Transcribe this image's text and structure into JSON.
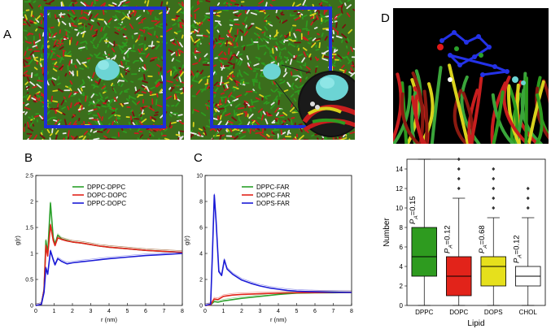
{
  "panel_labels": {
    "a": "A",
    "b": "B",
    "c": "C",
    "d": "D"
  },
  "colors": {
    "dppc": "#2e9b1f",
    "dopc": "#c81e1e",
    "dops": "#d9d21c",
    "chol": "#ffffff",
    "box_outline": "#1d2fd6",
    "protein": "#6cd4d4",
    "line_green": "#2aa02a",
    "line_red": "#e2231a",
    "line_blue": "#1a1ad6"
  },
  "chart_data": [
    {
      "type": "line",
      "id": "B",
      "xlabel": "r (nm)",
      "ylabel": "g(r)",
      "xlim": [
        0,
        8
      ],
      "ylim": [
        0,
        2.5
      ],
      "x_ticks": [
        "0",
        "1",
        "2",
        "3",
        "4",
        "5",
        "6",
        "7",
        "8"
      ],
      "y_ticks": [
        "0",
        "0.5",
        "1",
        "1.5",
        "2",
        "2.5"
      ],
      "legend_position": "top-center",
      "series": [
        {
          "name": "DPPC-DPPC",
          "color": "#2aa02a",
          "x": [
            0,
            0.3,
            0.45,
            0.55,
            0.65,
            0.8,
            0.95,
            1.05,
            1.2,
            1.4,
            1.7,
            2,
            2.5,
            3,
            3.5,
            4,
            5,
            6,
            7,
            8
          ],
          "y": [
            0,
            0.02,
            0.3,
            1.25,
            1.0,
            1.97,
            1.3,
            1.18,
            1.35,
            1.28,
            1.25,
            1.22,
            1.2,
            1.17,
            1.14,
            1.12,
            1.09,
            1.06,
            1.04,
            1.02
          ]
        },
        {
          "name": "DOPC-DOPC",
          "color": "#e2231a",
          "x": [
            0,
            0.3,
            0.45,
            0.55,
            0.65,
            0.8,
            0.95,
            1.05,
            1.2,
            1.4,
            1.7,
            2,
            2.5,
            3,
            3.5,
            4,
            5,
            6,
            7,
            8
          ],
          "y": [
            0,
            0.02,
            0.3,
            1.15,
            0.95,
            1.55,
            1.25,
            1.15,
            1.3,
            1.27,
            1.24,
            1.22,
            1.2,
            1.17,
            1.14,
            1.12,
            1.09,
            1.06,
            1.04,
            1.02
          ]
        },
        {
          "name": "DPPC-DOPC",
          "color": "#1a1ad6",
          "x": [
            0,
            0.3,
            0.45,
            0.55,
            0.65,
            0.8,
            0.95,
            1.05,
            1.2,
            1.4,
            1.7,
            2,
            2.5,
            3,
            3.5,
            4,
            5,
            6,
            7,
            8
          ],
          "y": [
            0,
            0.02,
            0.25,
            0.72,
            0.6,
            1.05,
            0.88,
            0.78,
            0.9,
            0.85,
            0.8,
            0.82,
            0.84,
            0.86,
            0.88,
            0.9,
            0.93,
            0.96,
            0.98,
            1.0
          ]
        }
      ]
    },
    {
      "type": "line",
      "id": "C",
      "xlabel": "r (nm)",
      "ylabel": "g(r)",
      "xlim": [
        0,
        8
      ],
      "ylim": [
        0,
        10
      ],
      "x_ticks": [
        "0",
        "1",
        "2",
        "3",
        "4",
        "5",
        "6",
        "7",
        "8"
      ],
      "y_ticks": [
        "0",
        "2",
        "4",
        "6",
        "8",
        "10"
      ],
      "legend_position": "top-center",
      "series": [
        {
          "name": "DPPC-FAR",
          "color": "#2aa02a",
          "x": [
            0,
            0.3,
            0.5,
            0.7,
            1,
            1.5,
            2,
            3,
            4,
            4.5,
            5,
            6,
            7,
            8
          ],
          "y": [
            0,
            0.05,
            0.3,
            0.25,
            0.35,
            0.45,
            0.55,
            0.7,
            0.85,
            0.9,
            0.95,
            0.97,
            0.98,
            1.0
          ]
        },
        {
          "name": "DOPC-FAR",
          "color": "#e2231a",
          "x": [
            0,
            0.3,
            0.5,
            0.7,
            1,
            1.5,
            2,
            3,
            4,
            4.5,
            5,
            6,
            7,
            8
          ],
          "y": [
            0,
            0.05,
            0.5,
            0.45,
            0.7,
            0.8,
            0.85,
            0.9,
            0.95,
            0.97,
            0.98,
            0.99,
            1.0,
            1.0
          ]
        },
        {
          "name": "DOPS-FAR",
          "color": "#1a1ad6",
          "x": [
            0,
            0.3,
            0.4,
            0.5,
            0.6,
            0.75,
            0.9,
            1.05,
            1.2,
            1.5,
            2,
            2.5,
            3,
            3.5,
            4,
            4.5,
            5,
            6,
            7,
            8
          ],
          "y": [
            0,
            0.1,
            4.0,
            8.5,
            6.5,
            2.6,
            2.3,
            3.5,
            2.8,
            2.4,
            1.95,
            1.7,
            1.5,
            1.35,
            1.25,
            1.15,
            1.1,
            1.05,
            1.02,
            1.0
          ]
        }
      ]
    },
    {
      "type": "box",
      "id": "D",
      "xlabel": "Lipid",
      "ylabel": "Number",
      "ylim": [
        0,
        15
      ],
      "y_ticks": [
        "0",
        "2",
        "4",
        "6",
        "8",
        "10",
        "12",
        "14"
      ],
      "categories": [
        "DPPC",
        "DOPC",
        "DOPS",
        "CHOL"
      ],
      "boxes": [
        {
          "label": "DPPC",
          "color": "#2e9b1f",
          "whisker_low": 0,
          "q1": 3,
          "median": 5,
          "q3": 8,
          "whisker_high": 15,
          "outliers": [],
          "annotation": "P",
          "annotation_sub": "A",
          "annotation_value": "=0.15"
        },
        {
          "label": "DOPC",
          "color": "#e2231a",
          "whisker_low": 0,
          "q1": 1,
          "median": 3,
          "q3": 5,
          "whisker_high": 11,
          "outliers": [
            12,
            13,
            14,
            15
          ],
          "annotation": "P",
          "annotation_sub": "A",
          "annotation_value": "=0.12"
        },
        {
          "label": "DOPS",
          "color": "#e6e01c",
          "whisker_low": 0,
          "q1": 2,
          "median": 4,
          "q3": 5,
          "whisker_high": 9,
          "outliers": [
            10,
            11,
            12,
            13,
            14
          ],
          "annotation": "P",
          "annotation_sub": "A",
          "annotation_value": "=0.68"
        },
        {
          "label": "CHOL",
          "color": "#ffffff",
          "whisker_low": 0,
          "q1": 2,
          "median": 3,
          "q3": 4,
          "whisker_high": 9,
          "outliers": [
            10,
            11,
            12
          ],
          "annotation": "P",
          "annotation_sub": "A",
          "annotation_value": "=0.12"
        }
      ]
    }
  ]
}
